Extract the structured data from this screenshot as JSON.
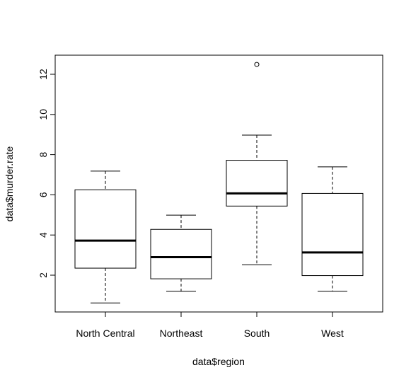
{
  "chart_data": {
    "type": "boxplot",
    "xlabel": "data$region",
    "ylabel": "data$murder.rate",
    "categories": [
      "North Central",
      "Northeast",
      "South",
      "West"
    ],
    "ylim": [
      0.2,
      12.9
    ],
    "yticks": [
      2,
      4,
      6,
      8,
      10,
      12
    ],
    "grid": false,
    "boxes": [
      {
        "category": "North Central",
        "whisker_low": 0.62,
        "q1": 2.35,
        "median": 3.72,
        "q3": 6.25,
        "whisker_high": 7.18,
        "outliers": []
      },
      {
        "category": "Northeast",
        "whisker_low": 1.2,
        "q1": 1.82,
        "median": 2.9,
        "q3": 4.28,
        "whisker_high": 4.99,
        "outliers": []
      },
      {
        "category": "South",
        "whisker_low": 2.52,
        "q1": 5.44,
        "median": 6.07,
        "q3": 7.72,
        "whisker_high": 8.97,
        "outliers": [
          12.49
        ]
      },
      {
        "category": "West",
        "whisker_low": 1.2,
        "q1": 1.98,
        "median": 3.13,
        "q3": 6.07,
        "whisker_high": 7.39,
        "outliers": []
      }
    ]
  }
}
